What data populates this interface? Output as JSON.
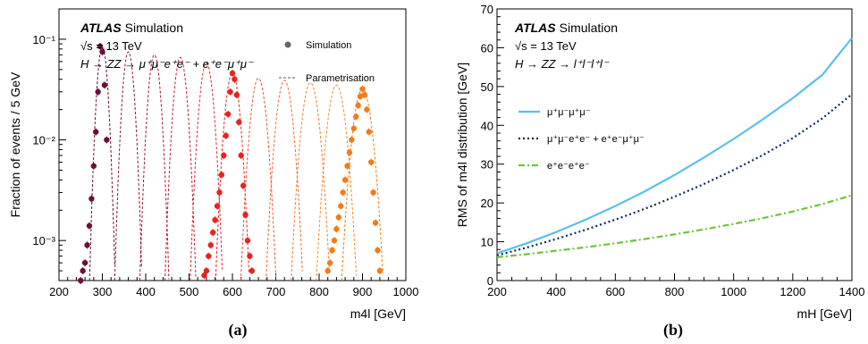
{
  "chart_data": [
    {
      "type": "line",
      "caption": "(a)",
      "brand": "ATLAS",
      "brand_suffix": "Simulation",
      "energy": "√s = 13 TeV",
      "process": "H → ZZ → μ⁺μ⁻e⁺e⁻ + e⁺e⁻μ⁺μ⁻",
      "legend": [
        "Simulation",
        "Parametrisation"
      ],
      "xlabel": "m4l [GeV]",
      "ylabel": "Fraction of events / 5 GeV",
      "xlim": [
        200,
        1000
      ],
      "ylim": [
        0.0004,
        0.2
      ],
      "yscale": "log",
      "xticks": [
        "200",
        "300",
        "400",
        "500",
        "600",
        "700",
        "800",
        "900",
        "1000"
      ],
      "yticks": [
        "10⁻³",
        "10⁻²",
        "10⁻¹"
      ],
      "peaks": [
        {
          "mass": 300,
          "peak": 0.085,
          "color": "#6b0f3a"
        },
        {
          "mass": 360,
          "peak": 0.075,
          "color": "#8b1a3a"
        },
        {
          "mass": 420,
          "peak": 0.07,
          "color": "#a5163a"
        },
        {
          "mass": 480,
          "peak": 0.066,
          "color": "#bf1f3f"
        },
        {
          "mass": 540,
          "peak": 0.058,
          "color": "#d72a33"
        },
        {
          "mass": 600,
          "peak": 0.046,
          "color": "#e5241f"
        },
        {
          "mass": 660,
          "peak": 0.041,
          "color": "#e9542c"
        },
        {
          "mass": 720,
          "peak": 0.039,
          "color": "#ec6a2e"
        },
        {
          "mass": 780,
          "peak": 0.037,
          "color": "#f07d2e"
        },
        {
          "mass": 840,
          "peak": 0.035,
          "color": "#f28a2b"
        },
        {
          "mass": 900,
          "peak": 0.032,
          "color": "#f47b16"
        }
      ],
      "simulation_points": [
        {
          "mass": 300,
          "x": [
            250,
            255,
            260,
            265,
            270,
            275,
            280,
            285,
            290,
            295,
            300,
            305,
            310
          ],
          "y": [
            0.0004,
            0.0005,
            0.0006,
            0.0009,
            0.0014,
            0.0026,
            0.0055,
            0.012,
            0.03,
            0.085,
            0.075,
            0.035,
            0.01
          ]
        },
        {
          "mass": 600,
          "x": [
            535,
            540,
            545,
            550,
            555,
            560,
            565,
            570,
            575,
            580,
            585,
            590,
            595,
            600,
            605,
            610,
            615,
            620,
            625,
            630,
            635,
            640,
            645
          ],
          "y": [
            0.00045,
            0.0005,
            0.0007,
            0.0009,
            0.0012,
            0.0016,
            0.0022,
            0.003,
            0.0045,
            0.007,
            0.011,
            0.018,
            0.03,
            0.046,
            0.04,
            0.028,
            0.015,
            0.007,
            0.0035,
            0.0018,
            0.001,
            0.0007,
            0.0005
          ]
        },
        {
          "mass": 900,
          "x": [
            820,
            825,
            830,
            835,
            840,
            845,
            850,
            855,
            860,
            865,
            870,
            875,
            880,
            885,
            890,
            895,
            900,
            905,
            910,
            915,
            920,
            925,
            930,
            935,
            940
          ],
          "y": [
            0.0005,
            0.0006,
            0.0008,
            0.001,
            0.0013,
            0.0017,
            0.0022,
            0.003,
            0.004,
            0.0055,
            0.0075,
            0.01,
            0.013,
            0.017,
            0.022,
            0.027,
            0.032,
            0.028,
            0.02,
            0.012,
            0.006,
            0.003,
            0.0015,
            0.0008,
            0.0005
          ]
        }
      ]
    },
    {
      "type": "line",
      "caption": "(b)",
      "brand": "ATLAS",
      "brand_suffix": "Simulation",
      "energy": "√s = 13 TeV",
      "process": "H → ZZ → l⁺l⁻l⁺l⁻",
      "xlabel": "mH [GeV]",
      "ylabel": "RMS of m4l distribution [GeV]",
      "xlim": [
        200,
        1400
      ],
      "ylim": [
        0,
        70
      ],
      "xticks": [
        "200",
        "400",
        "600",
        "800",
        "1000",
        "1200",
        "1400"
      ],
      "yticks": [
        "0",
        "10",
        "20",
        "30",
        "40",
        "50",
        "60",
        "70"
      ],
      "series": [
        {
          "name": "μ⁺μ⁻μ⁺μ⁻",
          "color": "#5bc0eb",
          "style": "solid",
          "x": [
            200,
            300,
            400,
            500,
            600,
            700,
            800,
            900,
            1000,
            1100,
            1200,
            1300,
            1400
          ],
          "y": [
            7,
            9.6,
            12.5,
            15.7,
            19.2,
            23,
            27.2,
            31.7,
            36.5,
            41.6,
            47,
            53,
            62.5
          ]
        },
        {
          "name": "μ⁺μ⁻e⁺e⁻ + e⁺e⁻μ⁺μ⁻",
          "color": "#0b2a5b",
          "style": "dotted",
          "x": [
            200,
            300,
            400,
            500,
            600,
            700,
            800,
            900,
            1000,
            1100,
            1200,
            1300,
            1400
          ],
          "y": [
            6.5,
            8.5,
            10.7,
            13.1,
            15.7,
            18.5,
            21.6,
            24.9,
            28.5,
            32.4,
            36.7,
            41.8,
            48
          ]
        },
        {
          "name": "e⁺e⁻e⁺e⁻",
          "color": "#6ec43a",
          "style": "dashdot",
          "x": [
            200,
            300,
            400,
            500,
            600,
            700,
            800,
            900,
            1000,
            1100,
            1200,
            1300,
            1400
          ],
          "y": [
            6,
            6.8,
            7.7,
            8.6,
            9.6,
            10.7,
            11.9,
            13.2,
            14.6,
            16.1,
            17.8,
            19.7,
            22
          ]
        }
      ]
    }
  ]
}
